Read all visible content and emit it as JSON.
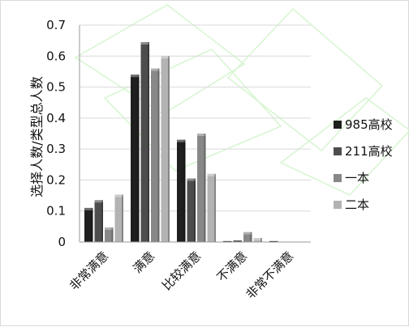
{
  "chart_data": {
    "type": "bar",
    "ylabel": "选择人数/类型总人数",
    "ylim": [
      0,
      0.7
    ],
    "yticks": [
      "0",
      "0.1",
      "0.2",
      "0.3",
      "0.4",
      "0.5",
      "0.6",
      "0.7"
    ],
    "categories": [
      "非常满意",
      "满意",
      "比较满意",
      "不满意",
      "非常不满意"
    ],
    "series": [
      {
        "name": "985高校",
        "color": "#1f1f1f",
        "values": [
          0.11,
          0.54,
          0.33,
          0.003,
          0.003
        ]
      },
      {
        "name": "211高校",
        "color": "#4d4d4d",
        "values": [
          0.135,
          0.645,
          0.205,
          0.005,
          0.0
        ]
      },
      {
        "name": "一本",
        "color": "#888888",
        "values": [
          0.047,
          0.56,
          0.35,
          0.032,
          0.0
        ]
      },
      {
        "name": "二本",
        "color": "#b3b3b3",
        "values": [
          0.153,
          0.6,
          0.22,
          0.013,
          0.0
        ]
      }
    ],
    "grid": true,
    "legend": "right"
  }
}
